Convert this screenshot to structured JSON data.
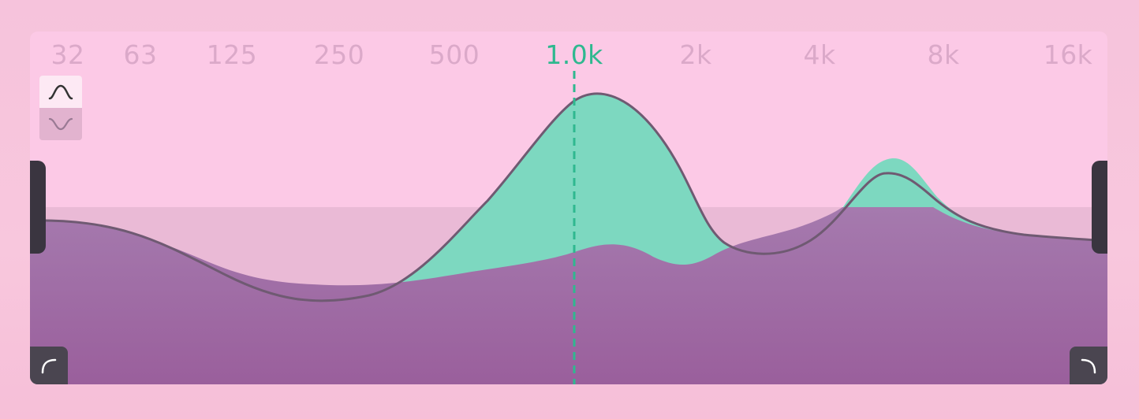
{
  "frequency_labels": [
    "32",
    "63",
    "125",
    "250",
    "500",
    "1.0k",
    "2k",
    "4k",
    "8k",
    "16k"
  ],
  "selected_frequency": "1.0k",
  "filter_types": {
    "selected": "bell",
    "options": [
      "bell",
      "notch"
    ]
  },
  "colors": {
    "panel_background": "#fcc9e6",
    "eq_curve_fill": "#7dd8c0",
    "spectrum_fill": "#9a62a0",
    "accent": "#2fb88f",
    "label": "#dba9c9",
    "handle": "#3a3540"
  },
  "icons": {
    "bell_filter": "bell-curve-icon",
    "notch_filter": "notch-curve-icon",
    "low_shelf": "low-shelf-icon",
    "high_shelf": "high-shelf-icon"
  }
}
